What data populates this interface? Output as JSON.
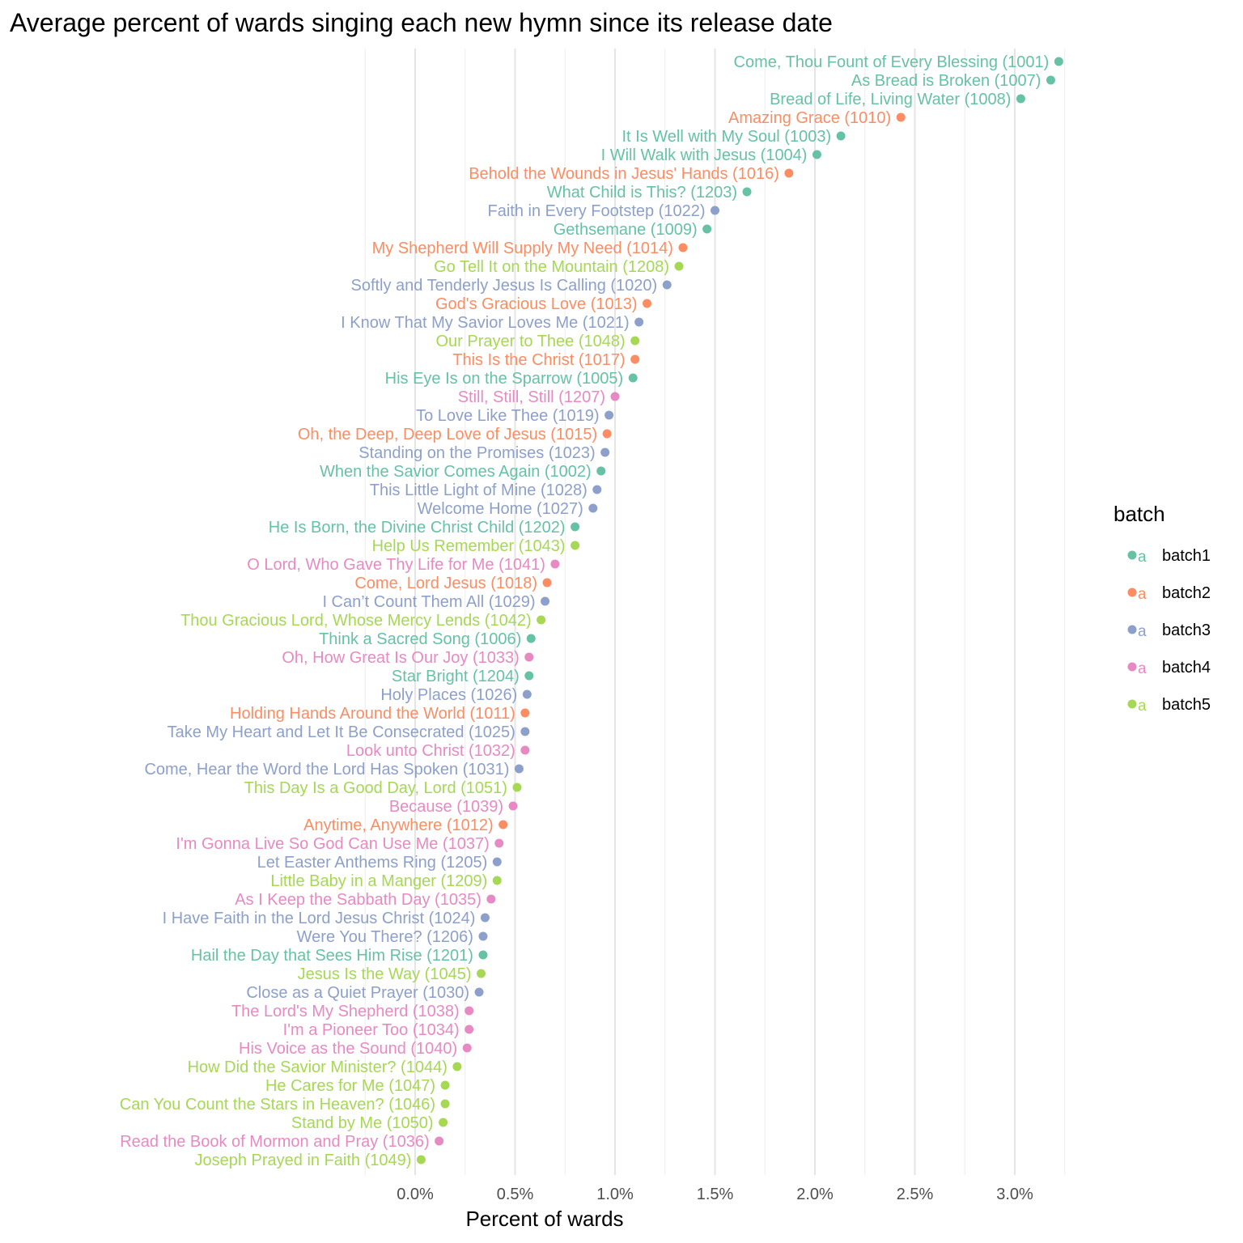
{
  "chart_data": {
    "type": "scatter",
    "title": "Average percent of wards singing each new hymn since its release date",
    "xlabel": "Percent of wards",
    "ylabel": "",
    "xlim": [
      0,
      0.0325
    ],
    "x_ticks": [
      "0.0%",
      "0.5%",
      "1.0%",
      "1.5%",
      "2.0%",
      "2.5%",
      "3.0%"
    ],
    "x_tick_values": [
      0,
      0.005,
      0.01,
      0.015,
      0.02,
      0.025,
      0.03
    ],
    "grid": true,
    "legend": {
      "title": "batch",
      "position": "right",
      "key_glyph": "a",
      "entries": [
        {
          "name": "batch1",
          "color": "#66c2a5"
        },
        {
          "name": "batch2",
          "color": "#fc8d62"
        },
        {
          "name": "batch3",
          "color": "#8da0cb"
        },
        {
          "name": "batch4",
          "color": "#e78ac3"
        },
        {
          "name": "batch5",
          "color": "#a6d854"
        }
      ]
    },
    "points": [
      {
        "label": "Come, Thou Fount of Every Blessing (1001)",
        "x": 0.0322,
        "batch": "batch1"
      },
      {
        "label": "As Bread is Broken (1007)",
        "x": 0.0318,
        "batch": "batch1"
      },
      {
        "label": "Bread of Life, Living Water (1008)",
        "x": 0.0303,
        "batch": "batch1"
      },
      {
        "label": "Amazing Grace (1010)",
        "x": 0.0243,
        "batch": "batch2"
      },
      {
        "label": "It Is Well with My Soul (1003)",
        "x": 0.0213,
        "batch": "batch1"
      },
      {
        "label": "I Will Walk with Jesus (1004)",
        "x": 0.0201,
        "batch": "batch1"
      },
      {
        "label": "Behold the Wounds in Jesus' Hands (1016)",
        "x": 0.0187,
        "batch": "batch2"
      },
      {
        "label": "What Child is This? (1203)",
        "x": 0.0166,
        "batch": "batch1"
      },
      {
        "label": "Faith in Every Footstep (1022)",
        "x": 0.015,
        "batch": "batch3"
      },
      {
        "label": "Gethsemane (1009)",
        "x": 0.0146,
        "batch": "batch1"
      },
      {
        "label": "My Shepherd Will Supply My Need (1014)",
        "x": 0.0134,
        "batch": "batch2"
      },
      {
        "label": "Go Tell It on the Mountain (1208)",
        "x": 0.0132,
        "batch": "batch5"
      },
      {
        "label": "Softly and Tenderly Jesus Is Calling (1020)",
        "x": 0.0126,
        "batch": "batch3"
      },
      {
        "label": "God's Gracious Love (1013)",
        "x": 0.0116,
        "batch": "batch2"
      },
      {
        "label": "I Know That My Savior Loves Me (1021)",
        "x": 0.0112,
        "batch": "batch3"
      },
      {
        "label": "Our Prayer to Thee (1048)",
        "x": 0.011,
        "batch": "batch5"
      },
      {
        "label": "This Is the Christ (1017)",
        "x": 0.011,
        "batch": "batch2"
      },
      {
        "label": "His Eye Is on the Sparrow (1005)",
        "x": 0.0109,
        "batch": "batch1"
      },
      {
        "label": "Still, Still, Still (1207)",
        "x": 0.01,
        "batch": "batch4"
      },
      {
        "label": "To Love Like Thee (1019)",
        "x": 0.0097,
        "batch": "batch3"
      },
      {
        "label": "Oh, the Deep, Deep Love of Jesus (1015)",
        "x": 0.0096,
        "batch": "batch2"
      },
      {
        "label": "Standing on the Promises (1023)",
        "x": 0.0095,
        "batch": "batch3"
      },
      {
        "label": "When the Savior Comes Again (1002)",
        "x": 0.0093,
        "batch": "batch1"
      },
      {
        "label": "This Little Light of Mine (1028)",
        "x": 0.0091,
        "batch": "batch3"
      },
      {
        "label": "Welcome Home (1027)",
        "x": 0.0089,
        "batch": "batch3"
      },
      {
        "label": "He Is Born, the Divine Christ Child (1202)",
        "x": 0.008,
        "batch": "batch1"
      },
      {
        "label": "Help Us Remember (1043)",
        "x": 0.008,
        "batch": "batch5"
      },
      {
        "label": "O Lord, Who Gave Thy Life for Me (1041)",
        "x": 0.007,
        "batch": "batch4"
      },
      {
        "label": "Come, Lord Jesus (1018)",
        "x": 0.0066,
        "batch": "batch2"
      },
      {
        "label": "I Can’t Count Them All (1029)",
        "x": 0.0065,
        "batch": "batch3"
      },
      {
        "label": "Thou Gracious Lord, Whose Mercy Lends (1042)",
        "x": 0.0063,
        "batch": "batch5"
      },
      {
        "label": "Think a Sacred Song (1006)",
        "x": 0.0058,
        "batch": "batch1"
      },
      {
        "label": "Oh, How Great Is Our Joy (1033)",
        "x": 0.0057,
        "batch": "batch4"
      },
      {
        "label": "Star Bright (1204)",
        "x": 0.0057,
        "batch": "batch1"
      },
      {
        "label": "Holy Places (1026)",
        "x": 0.0056,
        "batch": "batch3"
      },
      {
        "label": "Holding Hands Around the World (1011)",
        "x": 0.0055,
        "batch": "batch2"
      },
      {
        "label": "Take My Heart and Let It Be Consecrated (1025)",
        "x": 0.0055,
        "batch": "batch3"
      },
      {
        "label": "Look unto Christ (1032)",
        "x": 0.0055,
        "batch": "batch4"
      },
      {
        "label": "Come, Hear the Word the Lord Has Spoken (1031)",
        "x": 0.0052,
        "batch": "batch3"
      },
      {
        "label": "This Day Is a Good Day, Lord (1051)",
        "x": 0.0051,
        "batch": "batch5"
      },
      {
        "label": "Because (1039)",
        "x": 0.0049,
        "batch": "batch4"
      },
      {
        "label": "Anytime, Anywhere (1012)",
        "x": 0.0044,
        "batch": "batch2"
      },
      {
        "label": "I'm Gonna Live So God Can Use Me (1037)",
        "x": 0.0042,
        "batch": "batch4"
      },
      {
        "label": "Let Easter Anthems Ring (1205)",
        "x": 0.0041,
        "batch": "batch3"
      },
      {
        "label": "Little Baby in a Manger (1209)",
        "x": 0.0041,
        "batch": "batch5"
      },
      {
        "label": "As I Keep the Sabbath Day (1035)",
        "x": 0.0038,
        "batch": "batch4"
      },
      {
        "label": "I Have Faith in the Lord Jesus Christ (1024)",
        "x": 0.0035,
        "batch": "batch3"
      },
      {
        "label": "Were You There? (1206)",
        "x": 0.0034,
        "batch": "batch3"
      },
      {
        "label": "Hail the Day that Sees Him Rise (1201)",
        "x": 0.0034,
        "batch": "batch1"
      },
      {
        "label": "Jesus Is the Way (1045)",
        "x": 0.0033,
        "batch": "batch5"
      },
      {
        "label": "Close as a Quiet Prayer (1030)",
        "x": 0.0032,
        "batch": "batch3"
      },
      {
        "label": "The Lord's My Shepherd (1038)",
        "x": 0.0027,
        "batch": "batch4"
      },
      {
        "label": "I'm a Pioneer Too (1034)",
        "x": 0.0027,
        "batch": "batch4"
      },
      {
        "label": "His Voice as the Sound (1040)",
        "x": 0.0026,
        "batch": "batch4"
      },
      {
        "label": "How Did the Savior Minister? (1044)",
        "x": 0.0021,
        "batch": "batch5"
      },
      {
        "label": "He Cares for Me (1047)",
        "x": 0.0015,
        "batch": "batch5"
      },
      {
        "label": "Can You Count the Stars in Heaven? (1046)",
        "x": 0.0015,
        "batch": "batch5"
      },
      {
        "label": "Stand by Me (1050)",
        "x": 0.0014,
        "batch": "batch5"
      },
      {
        "label": "Read the Book of Mormon and Pray (1036)",
        "x": 0.0012,
        "batch": "batch4"
      },
      {
        "label": "Joseph Prayed in Faith (1049)",
        "x": 0.0003,
        "batch": "batch5"
      }
    ]
  }
}
